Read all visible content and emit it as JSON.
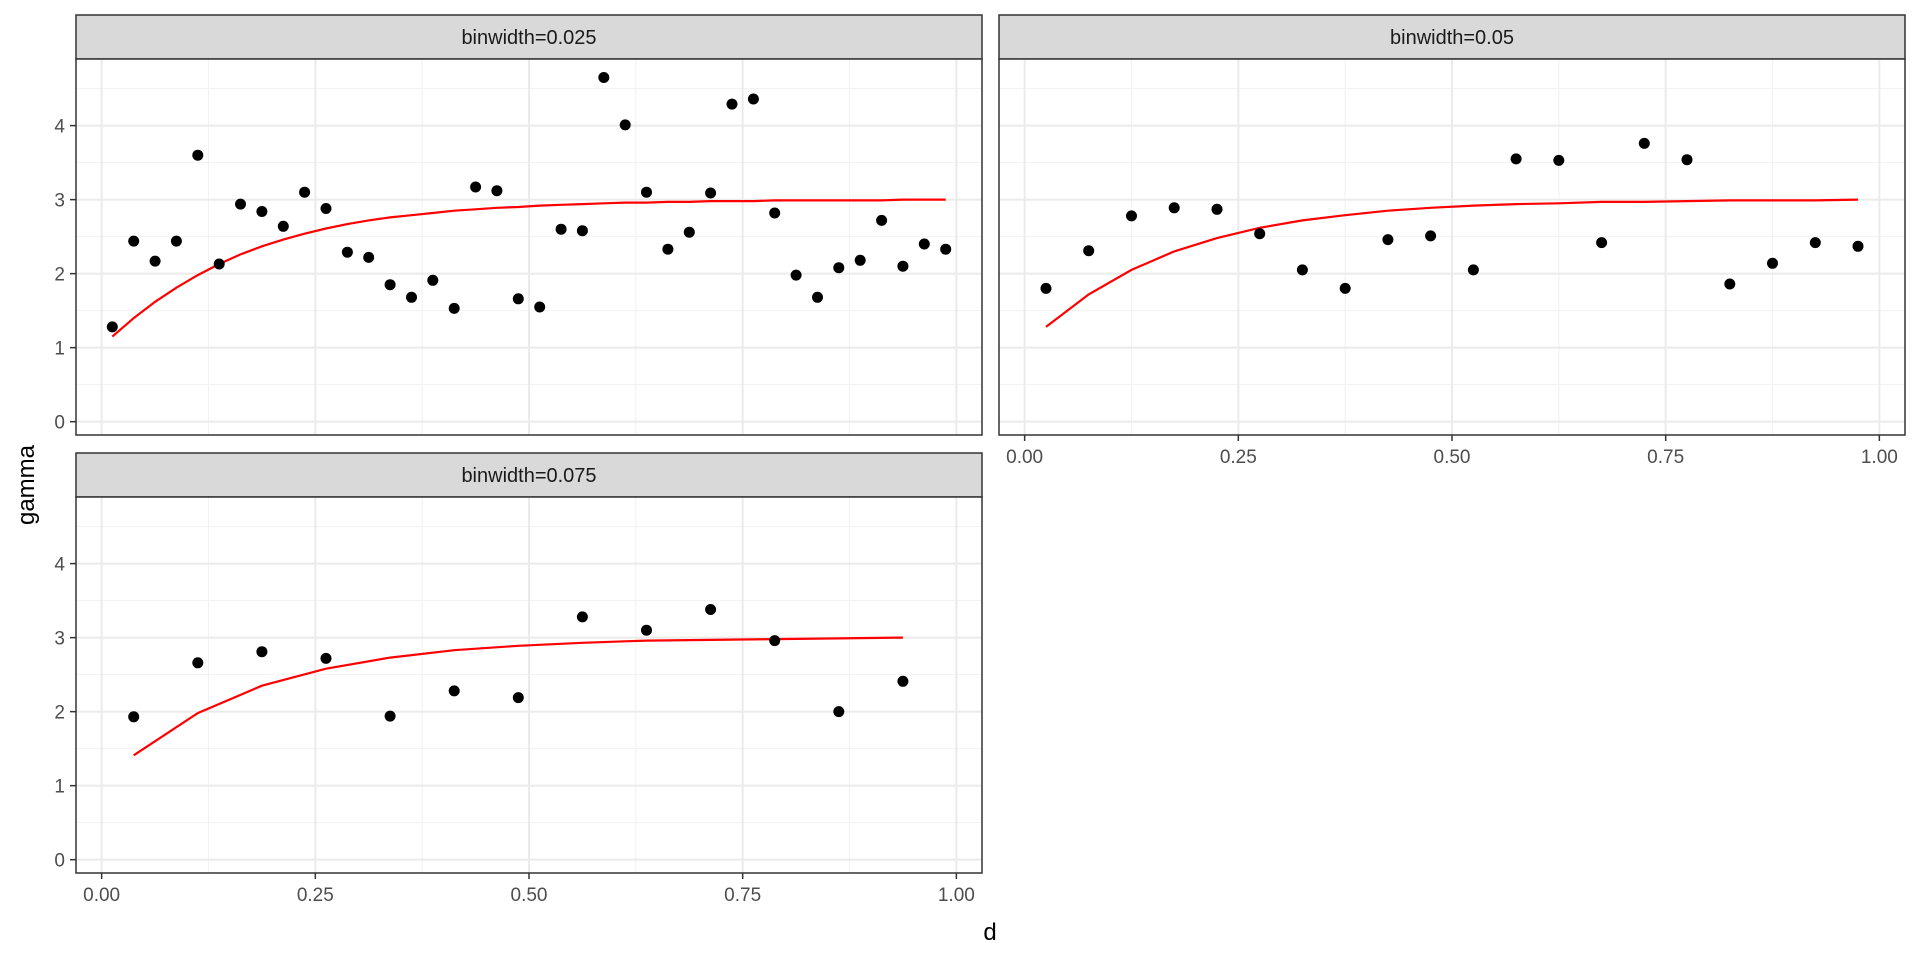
{
  "chart_data": {
    "type": "scatter",
    "layout": "facet-grid",
    "xlabel": "d",
    "ylabel": "gamma",
    "xlim": [
      -0.03,
      1.03
    ],
    "ylim": [
      -0.18,
      4.9
    ],
    "x_ticks": [
      0.0,
      0.25,
      0.5,
      0.75,
      1.0
    ],
    "x_tick_labels": [
      "0.00",
      "0.25",
      "0.50",
      "0.75",
      "1.00"
    ],
    "y_ticks": [
      0,
      1,
      2,
      3,
      4
    ],
    "y_tick_labels": [
      "0",
      "1",
      "2",
      "3",
      "4"
    ],
    "grid": true,
    "colors": {
      "points": "#000000",
      "fit_line": "#ff0000",
      "strip_fill": "#d9d9d9",
      "panel_border": "#333333",
      "grid_major": "#ebebeb",
      "grid_minor": "#f2f2f2"
    },
    "panels": [
      {
        "title": "binwidth=0.025",
        "points": [
          [
            0.0125,
            1.28
          ],
          [
            0.0375,
            2.44
          ],
          [
            0.0625,
            2.17
          ],
          [
            0.0875,
            2.44
          ],
          [
            0.1125,
            3.6
          ],
          [
            0.1375,
            2.13
          ],
          [
            0.1625,
            2.94
          ],
          [
            0.1875,
            2.84
          ],
          [
            0.2125,
            2.64
          ],
          [
            0.2375,
            3.1
          ],
          [
            0.2625,
            2.88
          ],
          [
            0.2875,
            2.29
          ],
          [
            0.3125,
            2.22
          ],
          [
            0.3375,
            1.85
          ],
          [
            0.3625,
            1.68
          ],
          [
            0.3875,
            1.91
          ],
          [
            0.4125,
            1.53
          ],
          [
            0.4375,
            3.17
          ],
          [
            0.4625,
            3.12
          ],
          [
            0.4875,
            1.66
          ],
          [
            0.5125,
            1.55
          ],
          [
            0.5375,
            2.6
          ],
          [
            0.5625,
            2.58
          ],
          [
            0.5875,
            4.65
          ],
          [
            0.6125,
            4.01
          ],
          [
            0.6375,
            3.1
          ],
          [
            0.6625,
            2.33
          ],
          [
            0.6875,
            2.56
          ],
          [
            0.7125,
            3.09
          ],
          [
            0.7375,
            4.29
          ],
          [
            0.7625,
            4.36
          ],
          [
            0.7875,
            2.82
          ],
          [
            0.8125,
            1.98
          ],
          [
            0.8375,
            1.68
          ],
          [
            0.8625,
            2.08
          ],
          [
            0.8875,
            2.18
          ],
          [
            0.9125,
            2.72
          ],
          [
            0.9375,
            2.1
          ],
          [
            0.9625,
            2.4
          ],
          [
            0.9875,
            2.33
          ]
        ],
        "fit": [
          [
            0.0125,
            1.15
          ],
          [
            0.0375,
            1.4
          ],
          [
            0.0625,
            1.62
          ],
          [
            0.0875,
            1.81
          ],
          [
            0.1125,
            1.98
          ],
          [
            0.1375,
            2.13
          ],
          [
            0.1625,
            2.26
          ],
          [
            0.1875,
            2.37
          ],
          [
            0.2125,
            2.46
          ],
          [
            0.2375,
            2.54
          ],
          [
            0.2625,
            2.61
          ],
          [
            0.2875,
            2.67
          ],
          [
            0.3125,
            2.72
          ],
          [
            0.3375,
            2.76
          ],
          [
            0.3625,
            2.79
          ],
          [
            0.3875,
            2.82
          ],
          [
            0.4125,
            2.85
          ],
          [
            0.4375,
            2.87
          ],
          [
            0.4625,
            2.89
          ],
          [
            0.4875,
            2.9
          ],
          [
            0.5125,
            2.92
          ],
          [
            0.5375,
            2.93
          ],
          [
            0.5625,
            2.94
          ],
          [
            0.5875,
            2.95
          ],
          [
            0.6125,
            2.96
          ],
          [
            0.6375,
            2.96
          ],
          [
            0.6625,
            2.97
          ],
          [
            0.6875,
            2.97
          ],
          [
            0.7125,
            2.98
          ],
          [
            0.7375,
            2.98
          ],
          [
            0.7625,
            2.98
          ],
          [
            0.7875,
            2.99
          ],
          [
            0.8125,
            2.99
          ],
          [
            0.8375,
            2.99
          ],
          [
            0.8625,
            2.99
          ],
          [
            0.8875,
            2.99
          ],
          [
            0.9125,
            2.99
          ],
          [
            0.9375,
            3.0
          ],
          [
            0.9625,
            3.0
          ],
          [
            0.9875,
            3.0
          ]
        ]
      },
      {
        "title": "binwidth=0.05",
        "points": [
          [
            0.025,
            1.8
          ],
          [
            0.075,
            2.31
          ],
          [
            0.125,
            2.78
          ],
          [
            0.175,
            2.89
          ],
          [
            0.225,
            2.87
          ],
          [
            0.275,
            2.54
          ],
          [
            0.325,
            2.05
          ],
          [
            0.375,
            1.8
          ],
          [
            0.425,
            2.46
          ],
          [
            0.475,
            2.51
          ],
          [
            0.525,
            2.05
          ],
          [
            0.575,
            3.55
          ],
          [
            0.625,
            3.53
          ],
          [
            0.675,
            2.42
          ],
          [
            0.725,
            3.76
          ],
          [
            0.775,
            3.54
          ],
          [
            0.825,
            1.86
          ],
          [
            0.875,
            2.14
          ],
          [
            0.925,
            2.42
          ],
          [
            0.975,
            2.37
          ]
        ],
        "fit": [
          [
            0.025,
            1.28
          ],
          [
            0.075,
            1.72
          ],
          [
            0.125,
            2.05
          ],
          [
            0.175,
            2.3
          ],
          [
            0.225,
            2.48
          ],
          [
            0.275,
            2.62
          ],
          [
            0.325,
            2.72
          ],
          [
            0.375,
            2.79
          ],
          [
            0.425,
            2.85
          ],
          [
            0.475,
            2.89
          ],
          [
            0.525,
            2.92
          ],
          [
            0.575,
            2.94
          ],
          [
            0.625,
            2.95
          ],
          [
            0.675,
            2.97
          ],
          [
            0.725,
            2.97
          ],
          [
            0.775,
            2.98
          ],
          [
            0.825,
            2.99
          ],
          [
            0.875,
            2.99
          ],
          [
            0.925,
            2.99
          ],
          [
            0.975,
            3.0
          ]
        ]
      },
      {
        "title": "binwidth=0.075",
        "points": [
          [
            0.0375,
            1.93
          ],
          [
            0.1125,
            2.66
          ],
          [
            0.1875,
            2.81
          ],
          [
            0.2625,
            2.72
          ],
          [
            0.3375,
            1.94
          ],
          [
            0.4125,
            2.28
          ],
          [
            0.4875,
            2.19
          ],
          [
            0.5625,
            3.28
          ],
          [
            0.6375,
            3.1
          ],
          [
            0.7125,
            3.38
          ],
          [
            0.7875,
            2.96
          ],
          [
            0.8625,
            2.0
          ],
          [
            0.9375,
            2.41
          ]
        ],
        "fit": [
          [
            0.0375,
            1.41
          ],
          [
            0.1125,
            1.98
          ],
          [
            0.1875,
            2.35
          ],
          [
            0.2625,
            2.58
          ],
          [
            0.3375,
            2.73
          ],
          [
            0.4125,
            2.83
          ],
          [
            0.4875,
            2.89
          ],
          [
            0.5625,
            2.93
          ],
          [
            0.6375,
            2.96
          ],
          [
            0.7125,
            2.97
          ],
          [
            0.7875,
            2.98
          ],
          [
            0.8625,
            2.99
          ],
          [
            0.9375,
            3.0
          ]
        ]
      }
    ]
  }
}
